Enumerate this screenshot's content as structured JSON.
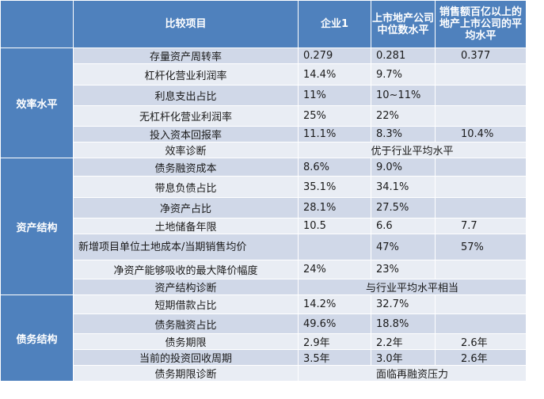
{
  "header": {
    "item": "比较项目",
    "col1": "企业1",
    "col2": "上市地产公司中位数水平",
    "col3": "销售额百亿以上的地产上市公司的平均水平"
  },
  "groups": [
    {
      "name": "效率水平",
      "rows": [
        {
          "item": "存量资产周转率",
          "v1": "0.279",
          "v2": "0.281",
          "v3": "0.377"
        },
        {
          "item": "杠杆化营业利润率",
          "v1": "14.4%",
          "v2": "9.7%",
          "v3": ""
        },
        {
          "item": "利息支出占比",
          "v1": "11%",
          "v2": "10~11%",
          "v3": ""
        },
        {
          "item": "无杠杆化营业利润率",
          "v1": "25%",
          "v2": "22%",
          "v3": ""
        },
        {
          "item": "投入资本回报率",
          "v1": "11.1%",
          "v2": "8.3%",
          "v3": "10.4%"
        }
      ],
      "diagnosis_label": "效率诊断",
      "diagnosis": "优于行业平均水平"
    },
    {
      "name": "资产结构",
      "rows": [
        {
          "item": "债务融资成本",
          "v1": "8.6%",
          "v2": "9.0%",
          "v3": ""
        },
        {
          "item": "带息负债占比",
          "v1": "35.1%",
          "v2": "34.1%",
          "v3": ""
        },
        {
          "item": "净资产占比",
          "v1": "28.1%",
          "v2": "27.5%",
          "v3": ""
        },
        {
          "item": "土地储备年限",
          "v1": "10.5",
          "v2": "6.6",
          "v3": "7.7"
        },
        {
          "item": "新增项目单位土地成本/当期销售均价",
          "v1": "",
          "v2": "47%",
          "v3": "57%"
        },
        {
          "item": "净资产能够吸收的最大降价幅度",
          "v1": "24%",
          "v2": "23%",
          "v3": ""
        }
      ],
      "diagnosis_label": "资产结构诊断",
      "diagnosis": "与行业平均水平相当"
    },
    {
      "name": "债务结构",
      "rows": [
        {
          "item": "短期借款占比",
          "v1": "14.2%",
          "v2": "32.7%",
          "v3": ""
        },
        {
          "item": "债务融资占比",
          "v1": "49.6%",
          "v2": "18.8%",
          "v3": ""
        },
        {
          "item": "债务期限",
          "v1": "2.9年",
          "v2": "2.2年",
          "v3": "2.6年"
        },
        {
          "item": "当前的投资回收周期",
          "v1": "3.5年",
          "v2": "3.0年",
          "v3": "2.6年"
        }
      ],
      "diagnosis_label": "债务期限诊断",
      "diagnosis": "面临再融资压力"
    }
  ]
}
